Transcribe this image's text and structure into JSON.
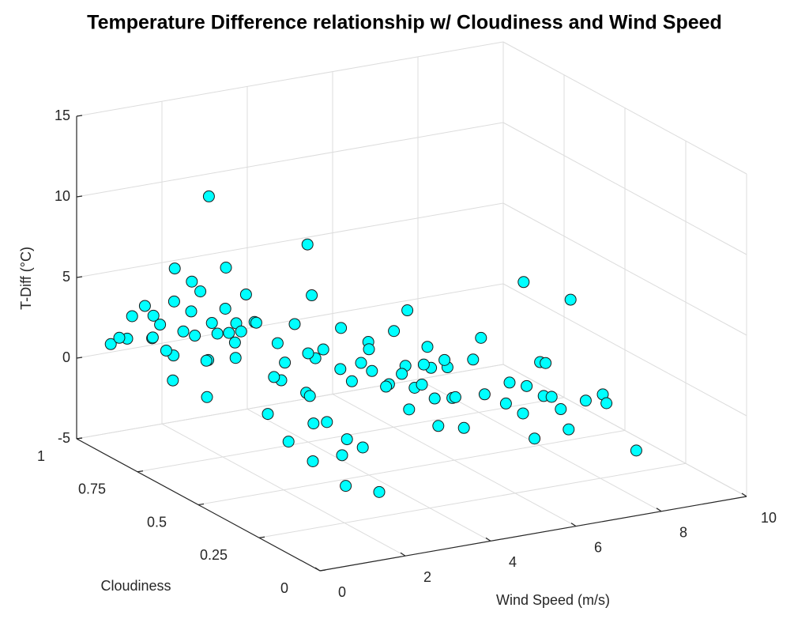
{
  "chart_data": {
    "type": "scatter3d",
    "title": "Temperature Difference relationship w/ Cloudiness and Wind Speed",
    "xlabel": "Wind Speed (m/s)",
    "ylabel": "Cloudiness",
    "zlabel": "T-Diff (°C)",
    "color": "#00ffff",
    "edgecolor": "#1a1a1a",
    "grid": true,
    "xlim": [
      0,
      10
    ],
    "xticks": [
      0,
      2,
      4,
      6,
      8,
      10
    ],
    "ylim": [
      0,
      1
    ],
    "yticks": [
      0,
      0.25,
      0.5,
      0.75,
      1
    ],
    "zlim": [
      -5,
      15
    ],
    "zticks": [
      -5,
      0,
      5,
      10,
      15
    ],
    "x": [
      0.8,
      0.9,
      1.0,
      1.2,
      1.3,
      1.5,
      1.6,
      1.7,
      1.8,
      2.0,
      2.1,
      2.2,
      2.3,
      2.4,
      2.5,
      2.6,
      2.7,
      2.8,
      2.9,
      3.0,
      3.1,
      3.2,
      3.3,
      3.4,
      1.4,
      1.9,
      2.2,
      2.6,
      3.0,
      1.1,
      3.5,
      3.6,
      2.0,
      2.3,
      2.5,
      2.8,
      3.0,
      3.2,
      3.4,
      3.6,
      3.8,
      4.0,
      2.2,
      2.6,
      3.1,
      3.5,
      3.9,
      4.2,
      3.3,
      2.9,
      4.1,
      3.7,
      2.4,
      2.6,
      2.8,
      3.0,
      2.4,
      3.2,
      3.1,
      2.7,
      3.5,
      3.7,
      3.9,
      4.0,
      4.2,
      4.3,
      4.5,
      4.6,
      4.8,
      5.0,
      3.8,
      4.1,
      4.4,
      4.7,
      5.1,
      3.6,
      4.0,
      4.4,
      4.9,
      5.2,
      4.2,
      4.6,
      5.3,
      4.8,
      5.0,
      5.3,
      5.5,
      5.7,
      5.9,
      6.1,
      6.3,
      6.5,
      5.6,
      6.0,
      6.4,
      5.2,
      6.2,
      6.8,
      7.3,
      7.2,
      7.4,
      7.7,
      7.0
    ],
    "y": [
      1,
      0.95,
      1,
      0.9,
      1,
      0.95,
      1,
      0.9,
      1,
      0.95,
      1,
      0.9,
      1,
      0.95,
      1,
      0.9,
      1,
      0.95,
      1,
      0.9,
      1,
      0.95,
      1,
      0.9,
      0.85,
      0.8,
      0.85,
      0.8,
      0.85,
      0.85,
      1,
      0.9,
      0.7,
      0.75,
      0.7,
      0.65,
      0.7,
      0.75,
      0.7,
      0.65,
      0.7,
      0.75,
      0.6,
      0.6,
      0.6,
      0.6,
      0.6,
      0.65,
      0.55,
      0.55,
      0.55,
      0.7,
      0.55,
      0.35,
      0.4,
      0.35,
      0.45,
      0.45,
      0.3,
      0.5,
      0.4,
      0.45,
      0.4,
      0.35,
      0.4,
      0.45,
      0.4,
      0.35,
      0.4,
      0.45,
      0.3,
      0.3,
      0.3,
      0.3,
      0.35,
      0.5,
      0.5,
      0.5,
      0.5,
      0.4,
      0.25,
      0.25,
      0.3,
      0.25,
      0.2,
      0.15,
      0.2,
      0.15,
      0.2,
      0.15,
      0.2,
      0.15,
      0.1,
      0.1,
      0.1,
      0.25,
      0.25,
      0.1,
      0.25,
      0.1,
      0.12,
      0.05,
      0.3
    ],
    "z": [
      0.5,
      1.2,
      0.8,
      1.5,
      2.0,
      1.0,
      2.5,
      0.2,
      1.8,
      3.0,
      -0.5,
      1.2,
      4.5,
      2.2,
      0.5,
      1.8,
      3.5,
      -1.0,
      2.8,
      1.0,
      8.6,
      2.0,
      0.0,
      3.2,
      -0.8,
      0.6,
      -2.2,
      2.6,
      1.5,
      2.8,
      4.0,
      1.4,
      2.5,
      1.0,
      3.5,
      0.2,
      2.0,
      -0.6,
      3.0,
      1.2,
      4.6,
      0.5,
      -1.2,
      1.8,
      -0.3,
      2.2,
      0.8,
      2.8,
      -1.8,
      0.0,
      1.5,
      7.8,
      -2.6,
      -3.8,
      -2.4,
      -1.6,
      -3.0,
      -2.0,
      -4.0,
      -1.2,
      2.5,
      3.8,
      1.5,
      3.0,
      2.0,
      4.2,
      1.0,
      2.6,
      3.4,
      1.8,
      0.8,
      2.2,
      1.2,
      3.0,
      0.5,
      1.0,
      2.8,
      0.3,
      4.8,
      2.4,
      0.0,
      1.6,
      3.2,
      -0.4,
      2.0,
      3.0,
      1.2,
      2.6,
      0.4,
      1.8,
      3.4,
      0.8,
      -0.2,
      2.2,
      0.0,
      5.0,
      8.0,
      1.6,
      6.4,
      1.8,
      1.0,
      -1.5,
      2.2
    ]
  }
}
